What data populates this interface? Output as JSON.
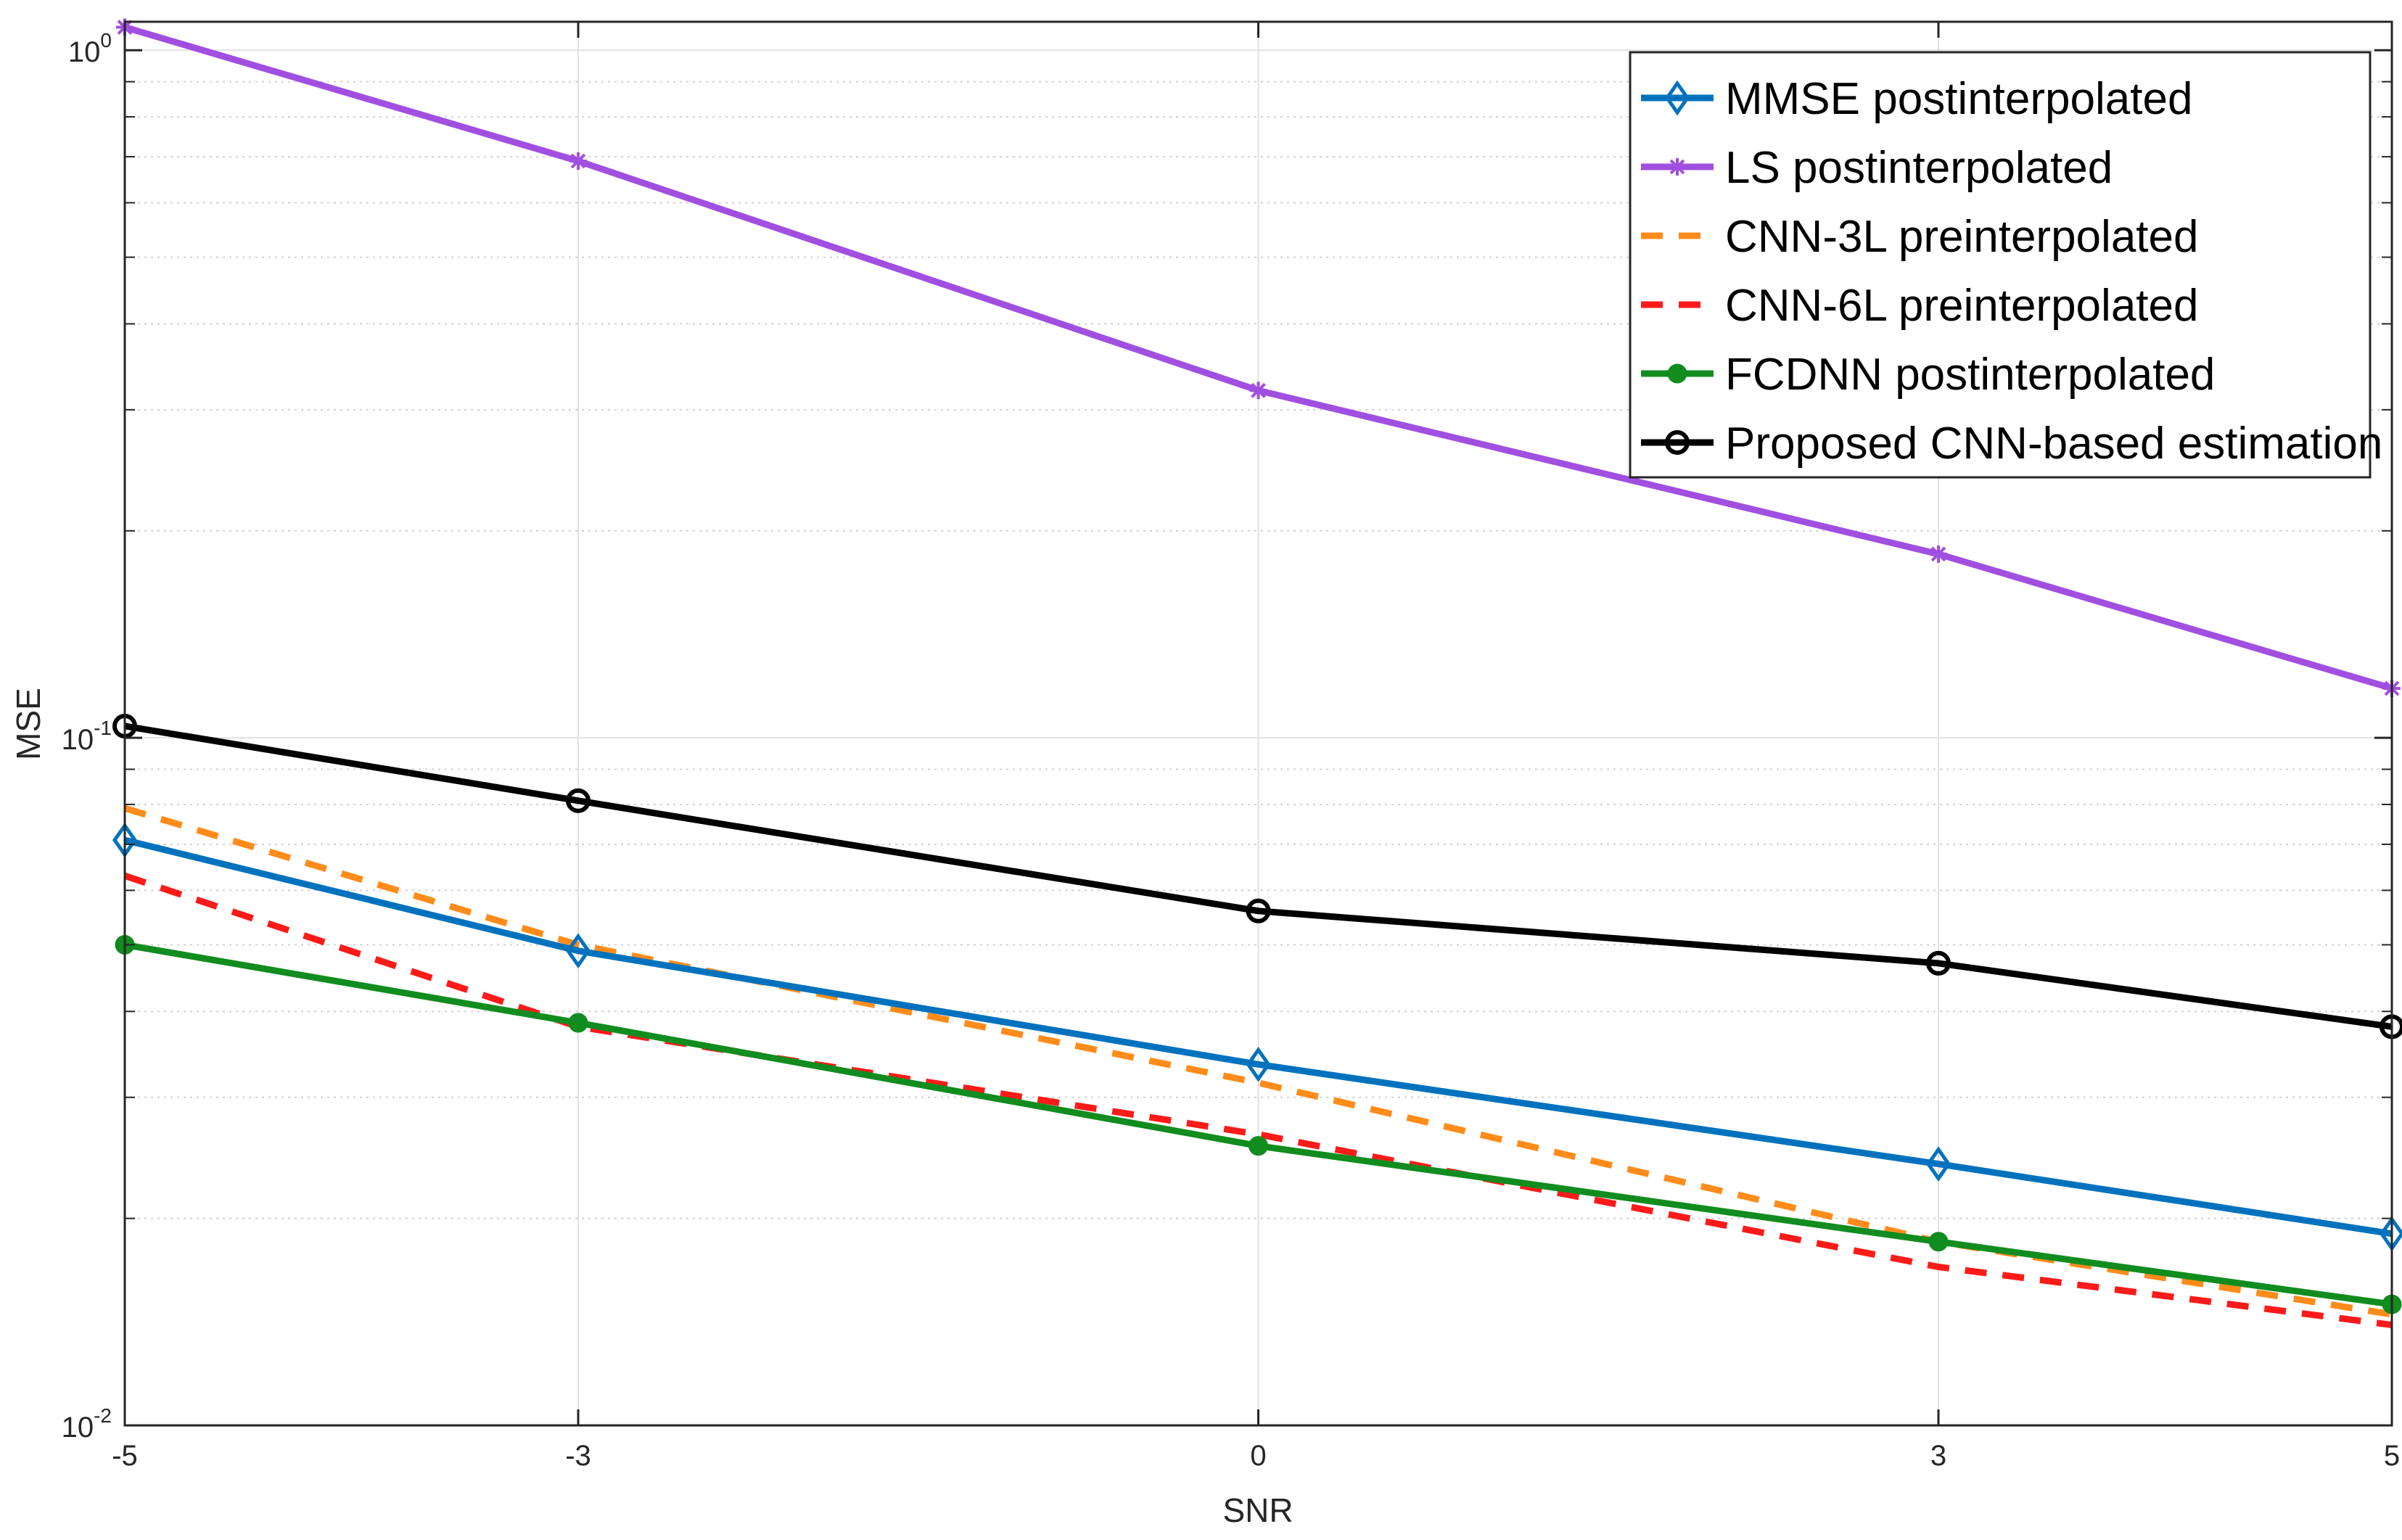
{
  "chart_data": {
    "type": "line",
    "xlabel": "SNR",
    "ylabel": "MSE",
    "x": [
      -5,
      -3,
      0,
      3,
      5
    ],
    "xlim": [
      -5,
      5
    ],
    "ylim": [
      0.01,
      1.1
    ],
    "yscale": "log",
    "grid": true,
    "legend_position": "top-right",
    "x_tick_labels": [
      "-5",
      "-3",
      "0",
      "3",
      "5"
    ],
    "y_tick_labels": [
      {
        "base": "10",
        "exp": "0",
        "value": 1
      },
      {
        "base": "10",
        "exp": "-1",
        "value": 0.1
      },
      {
        "base": "10",
        "exp": "-2",
        "value": 0.01
      }
    ],
    "series": [
      {
        "name": "MMSE postinterpolated",
        "color": "#0072BD",
        "dash": "solid",
        "marker": "diamond",
        "values": [
          0.071,
          0.049,
          0.0335,
          0.024,
          0.019
        ]
      },
      {
        "name": "LS postinterpolated",
        "color": "#A14FE0",
        "dash": "solid",
        "marker": "star",
        "values": [
          1.08,
          0.69,
          0.32,
          0.185,
          0.118
        ]
      },
      {
        "name": "CNN-3L preinterpolated",
        "color": "#FF8C1A",
        "dash": "dashed",
        "marker": "none",
        "values": [
          0.079,
          0.05,
          0.0315,
          0.0185,
          0.0145
        ]
      },
      {
        "name": "CNN-6L preinterpolated",
        "color": "#FF1A1A",
        "dash": "dashed",
        "marker": "none",
        "values": [
          0.063,
          0.038,
          0.0265,
          0.017,
          0.014
        ]
      },
      {
        "name": "FCDNN postinterpolated",
        "color": "#118C1F",
        "dash": "solid",
        "marker": "circle-filled",
        "values": [
          0.05,
          0.0385,
          0.0255,
          0.0185,
          0.015
        ]
      },
      {
        "name": "Proposed CNN-based estimation",
        "color": "#000000",
        "dash": "solid",
        "marker": "circle-open",
        "values": [
          0.104,
          0.081,
          0.056,
          0.047,
          0.038
        ]
      }
    ]
  }
}
